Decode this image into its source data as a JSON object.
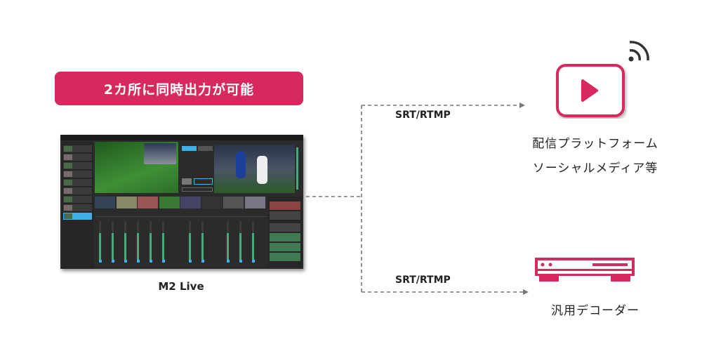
{
  "banner": {
    "text": "2カ所に同時出力が可能",
    "color": "#d6295e"
  },
  "source": {
    "label": "M2 Live",
    "icon": "app-screenshot"
  },
  "outputs": [
    {
      "protocol": "SRT/RTMP",
      "line1": "配信プラットフォーム",
      "line2": "ソーシャルメディア等",
      "icon": "play-video-icon"
    },
    {
      "protocol": "SRT/RTMP",
      "label": "汎用デコーダー",
      "icon": "decoder-device-icon"
    }
  ],
  "colors": {
    "accent": "#d6295e",
    "line": "#777777",
    "ui_bg": "#2b2b2b",
    "ui_highlight": "#3fb0e8",
    "ui_meter": "#3fae7a"
  }
}
